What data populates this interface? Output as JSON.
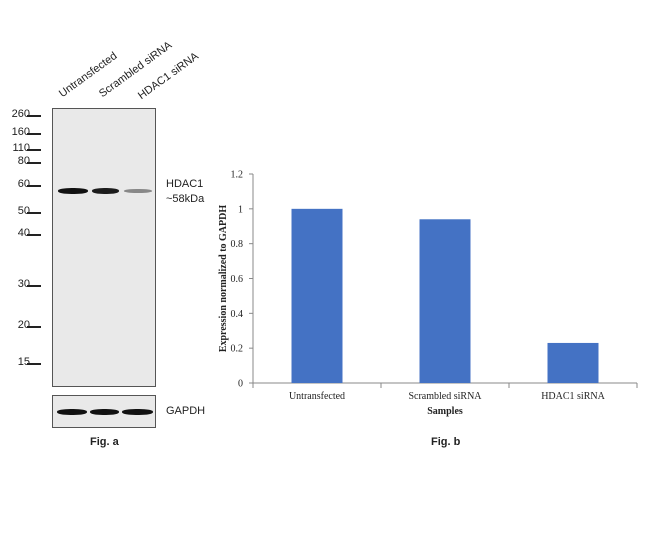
{
  "blot": {
    "lanes": [
      "Untransfected",
      "Scrambled siRNA",
      "HDAC1 siRNA"
    ],
    "mw_markers": [
      "260",
      "160",
      "110",
      "80",
      "60",
      "50",
      "40",
      "30",
      "20",
      "15"
    ],
    "target_label_line1": "HDAC1",
    "target_label_line2": "~58kDa",
    "loading_control_label": "GAPDH",
    "band_intensity": [
      1.0,
      0.95,
      0.45
    ],
    "figure_label": "Fig. a"
  },
  "chart_data": {
    "type": "bar",
    "categories": [
      "Untransfected",
      "Scrambled siRNA",
      "HDAC1 siRNA"
    ],
    "values": [
      1.0,
      0.94,
      0.23
    ],
    "xlabel": "Samples",
    "ylabel": "Expression normalized to GAPDH",
    "ylim": [
      0,
      1.2
    ],
    "yticks": [
      "0",
      "0.2",
      "0.4",
      "0.6",
      "0.8",
      "1",
      "1.2"
    ],
    "bar_color": "#4472c4",
    "grid": false,
    "figure_label": "Fig. b"
  }
}
